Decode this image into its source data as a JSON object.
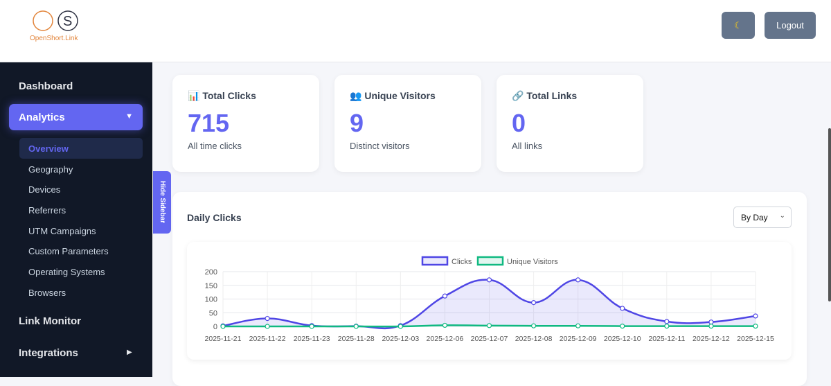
{
  "header": {
    "logo_text": "OpenShort.Link",
    "theme_icon": "moon-icon",
    "logout_label": "Logout"
  },
  "sidebar": {
    "dashboard": "Dashboard",
    "analytics": "Analytics",
    "analytics_sub": [
      "Overview",
      "Geography",
      "Devices",
      "Referrers",
      "UTM Campaigns",
      "Custom Parameters",
      "Operating Systems",
      "Browsers"
    ],
    "link_monitor": "Link Monitor",
    "integrations": "Integrations",
    "hide_label": "Hide Sidebar"
  },
  "cards": [
    {
      "icon": "bar-chart-icon",
      "title": "Total Clicks",
      "value": "715",
      "desc": "All time clicks"
    },
    {
      "icon": "users-icon",
      "title": "Unique Visitors",
      "value": "9",
      "desc": "Distinct visitors"
    },
    {
      "icon": "link-icon",
      "title": "Total Links",
      "value": "0",
      "desc": "All links"
    }
  ],
  "panel": {
    "title": "Daily Clicks",
    "select_value": "By Day"
  },
  "colors": {
    "accent": "#6366f1",
    "clicks": "#4f46e5",
    "visitors": "#10b981",
    "sidebar": "#111827"
  },
  "chart_data": {
    "type": "line",
    "categories": [
      "2025-11-21",
      "2025-11-22",
      "2025-11-23",
      "2025-11-28",
      "2025-12-03",
      "2025-12-06",
      "2025-12-07",
      "2025-12-08",
      "2025-12-09",
      "2025-12-10",
      "2025-12-11",
      "2025-12-12",
      "2025-12-15"
    ],
    "series": [
      {
        "name": "Clicks",
        "values": [
          2,
          29,
          3,
          1,
          3,
          111,
          170,
          87,
          170,
          66,
          18,
          16,
          38
        ],
        "color": "#4f46e5",
        "fill": true
      },
      {
        "name": "Unique Visitors",
        "values": [
          0,
          0,
          0,
          0,
          0,
          4,
          3,
          2,
          2,
          1,
          1,
          1,
          1
        ],
        "color": "#10b981",
        "fill": false
      }
    ],
    "yticks": [
      0,
      50,
      100,
      150,
      200
    ],
    "ylim": [
      0,
      200
    ],
    "grid": true,
    "legend": "top"
  }
}
